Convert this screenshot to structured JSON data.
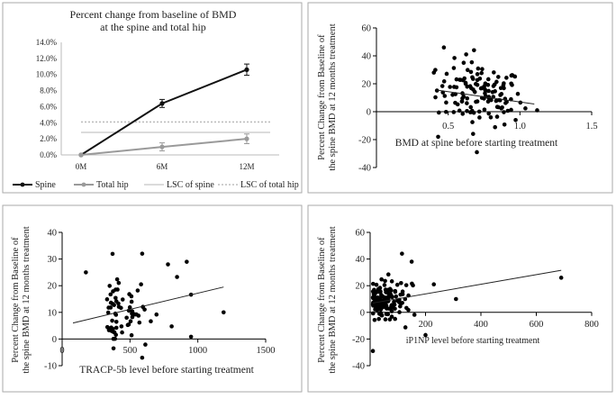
{
  "chart_data": [
    {
      "type": "line",
      "title": [
        "Percent change from baseline of BMD",
        "at the spine and total hip"
      ],
      "categories": [
        "0M",
        "6M",
        "12M"
      ],
      "ylim": [
        0,
        14
      ],
      "yticks": [
        "0.0%",
        "2.0%",
        "4.0%",
        "6.0%",
        "8.0%",
        "10.0%",
        "12.0%",
        "14.0%"
      ],
      "series": [
        {
          "name": "Spine",
          "values": [
            0,
            6.4,
            10.6
          ],
          "err": [
            0,
            0.5,
            0.7
          ],
          "color": "#111111"
        },
        {
          "name": "Total hip",
          "values": [
            0,
            1.0,
            2.0
          ],
          "err": [
            0,
            0.5,
            0.6
          ],
          "color": "#9a9a9a"
        }
      ],
      "reference_lines": [
        {
          "name": "LSC of spine",
          "value": 2.8,
          "style": "solid",
          "color": "#cfcfcf"
        },
        {
          "name": "LSC of total hip",
          "value": 4.1,
          "style": "dotted",
          "color": "#bdbdbd"
        }
      ],
      "legend": [
        "Spine",
        "Total hip",
        "LSC of spine",
        "LSC of total hip"
      ]
    },
    {
      "type": "scatter",
      "xlabel": "BMD at spine before starting treatment",
      "ylabel": [
        "Percent Change from Baseline of",
        "the spine BMD at 12 months treatment"
      ],
      "xlim": [
        0,
        1.5
      ],
      "ylim": [
        -40,
        60
      ],
      "xticks": [
        "0.5",
        "1.0",
        "1.5"
      ],
      "xtick_values": [
        0.5,
        1.0,
        1.5
      ],
      "yticks": [
        "-40",
        "-20",
        "0",
        "20",
        "40",
        "60"
      ],
      "trend": [
        [
          0.42,
          15.5
        ],
        [
          1.1,
          5.5
        ]
      ]
    },
    {
      "type": "scatter",
      "xlabel": "TRACP-5b level before starting treatment",
      "ylabel": [
        "Percent Change from Baseline of",
        "the spine BMD at 12 months treatment"
      ],
      "xlim": [
        0,
        1500
      ],
      "ylim": [
        -10,
        40
      ],
      "xticks": [
        "0",
        "500",
        "1000",
        "1500"
      ],
      "xtick_values": [
        0,
        500,
        1000,
        1500
      ],
      "yticks": [
        "-10",
        "0",
        "10",
        "20",
        "30",
        "40"
      ],
      "trend": [
        [
          80,
          6
        ],
        [
          1190,
          19.5
        ]
      ]
    },
    {
      "type": "scatter",
      "xlabel": "iP1NP level before starting treatment",
      "ylabel": [
        "Percent Change from Baseline of",
        "the spine BMD at 12 months treatment"
      ],
      "xlim": [
        0,
        800
      ],
      "ylim": [
        -40,
        60
      ],
      "xticks": [
        "200",
        "400",
        "600",
        "800"
      ],
      "xtick_values": [
        200,
        400,
        600,
        800
      ],
      "yticks": [
        "-40",
        "-20",
        "0",
        "20",
        "40",
        "60"
      ],
      "trend": [
        [
          10,
          7
        ],
        [
          690,
          31.5
        ]
      ]
    }
  ]
}
